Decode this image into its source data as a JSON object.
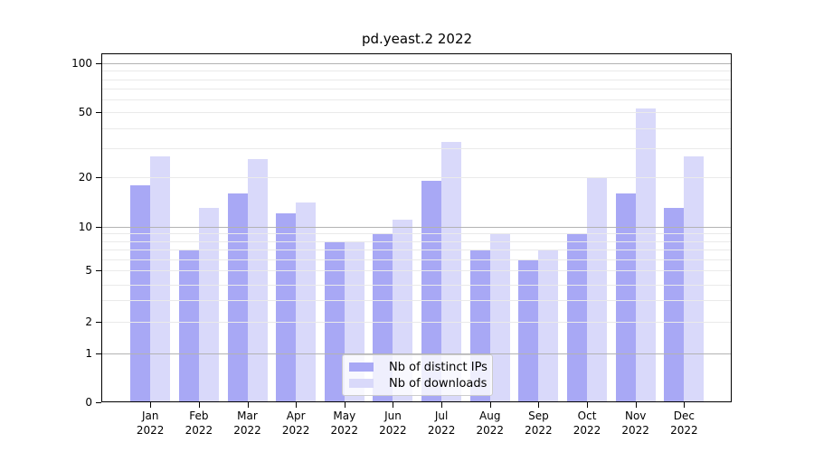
{
  "title": "pd.yeast.2 2022",
  "colors": {
    "distinct_ips": "#a8a8f5",
    "downloads": "#d9d9fa",
    "grid_major": "#b3b3b3",
    "grid_minor": "#eaeaea",
    "axis": "#000000",
    "legend_border": "#cccccc"
  },
  "chart_data": {
    "type": "bar",
    "title": "pd.yeast.2 2022",
    "categories": [
      "Jan",
      "Feb",
      "Mar",
      "Apr",
      "May",
      "Jun",
      "Jul",
      "Aug",
      "Sep",
      "Oct",
      "Nov",
      "Dec"
    ],
    "year": "2022",
    "series": [
      {
        "name": "Nb of distinct IPs",
        "values": [
          18,
          7,
          16,
          12,
          8,
          9,
          19,
          7,
          6,
          9,
          16,
          13
        ]
      },
      {
        "name": "Nb of downloads",
        "values": [
          27,
          13,
          26,
          14,
          8,
          11,
          33,
          9,
          7,
          20,
          53,
          27
        ]
      }
    ],
    "yscale": "symlog",
    "ylim": [
      0,
      115
    ],
    "ytick_labels": [
      "0",
      "1",
      "2",
      "5",
      "10",
      "20",
      "50",
      "100"
    ],
    "yticks": [
      0,
      1,
      2,
      5,
      10,
      20,
      50,
      100
    ],
    "major_gridlines": [
      1,
      10,
      100
    ],
    "minor_gridlines": [
      2,
      3,
      4,
      5,
      6,
      7,
      8,
      9,
      20,
      30,
      40,
      50,
      60,
      70,
      80,
      90
    ],
    "grid": true,
    "legend_position": "lower center"
  }
}
